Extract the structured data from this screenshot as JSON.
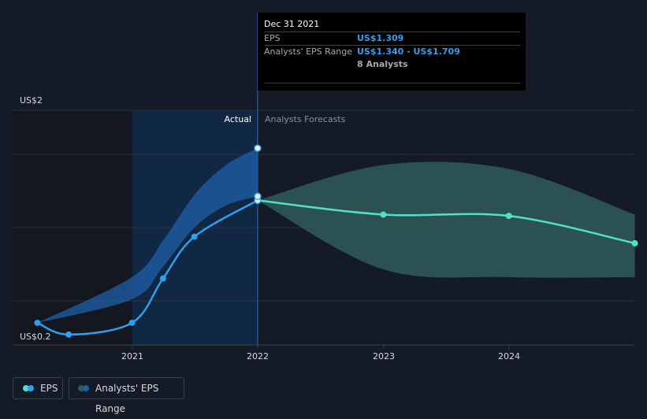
{
  "chart_data": {
    "type": "line",
    "y_top_label": "US$2",
    "y_bottom_label": "US$0.2",
    "ylim": [
      0.2,
      2.0
    ],
    "x_ticks": [
      "2021",
      "2022",
      "2023",
      "2024"
    ],
    "divider_labels": {
      "actual": "Actual",
      "forecast": "Analysts Forecasts"
    },
    "series": [
      {
        "name": "EPS",
        "points": [
          {
            "x": "2020-03-31",
            "y": 0.37
          },
          {
            "x": "2020-06-30",
            "y": 0.28
          },
          {
            "x": "2020-12-31",
            "y": 0.37
          },
          {
            "x": "2021-03-31",
            "y": 0.71
          },
          {
            "x": "2021-06-30",
            "y": 1.03
          },
          {
            "x": "2021-12-31",
            "y": 1.309
          }
        ]
      },
      {
        "name": "EPS forecast",
        "points": [
          {
            "x": "2021-12-31",
            "y": 1.309
          },
          {
            "x": "2022-12-31",
            "y": 1.2
          },
          {
            "x": "2023-12-31",
            "y": 1.19
          },
          {
            "x": "2024-12-31",
            "y": 0.98
          }
        ]
      }
    ],
    "range_actual": {
      "x": [
        "2020-03-31",
        "2020-12-31",
        "2021-03-31",
        "2021-06-30",
        "2021-09-30",
        "2021-12-31"
      ],
      "low": [
        0.37,
        0.55,
        0.8,
        1.1,
        1.27,
        1.34
      ],
      "high": [
        0.37,
        0.72,
        1.0,
        1.35,
        1.58,
        1.709
      ]
    },
    "range_forecast": {
      "x": [
        "2021-12-31",
        "2022-12-31",
        "2023-12-31",
        "2024-12-31"
      ],
      "low": [
        1.309,
        0.78,
        0.72,
        0.72
      ],
      "high": [
        1.309,
        1.58,
        1.55,
        1.2
      ]
    },
    "highlight_marker": {
      "x": "2021-12-31",
      "y": 1.34
    },
    "top_marker": {
      "x": "2021-12-31",
      "y": 1.709
    },
    "colors": {
      "background": "#151b26",
      "eps_line": "#2f9ff0",
      "forecast_line": "#4fe0c9",
      "actual_band": "#1f5fa8",
      "forecast_band": "#2f5a5a",
      "highlight_region": "#0f2a4a"
    }
  },
  "tooltip": {
    "date": "Dec 31 2021",
    "eps_label": "EPS",
    "eps_value": "US$1.309",
    "range_label": "Analysts' EPS Range",
    "range_value": "US$1.340 - US$1.709",
    "analysts": "8 Analysts"
  },
  "legend": {
    "eps_label": "EPS",
    "range_label": "Analysts' EPS Range"
  }
}
